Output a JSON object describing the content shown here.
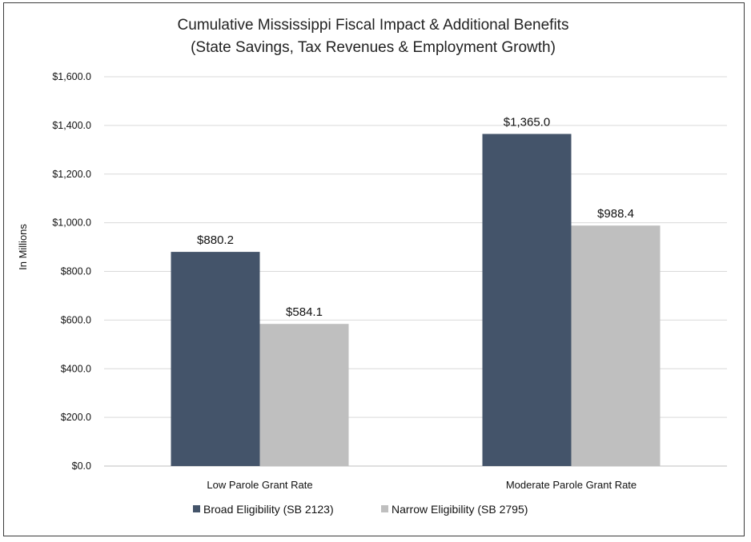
{
  "chart_data": {
    "type": "bar",
    "title": "Cumulative Mississippi Fiscal Impact & Additional Benefits",
    "subtitle": "(State Savings, Tax Revenues & Employment Growth)",
    "xlabel": "",
    "ylabel": "In Millions",
    "ylim": [
      0,
      1600
    ],
    "ytick_values": [
      0,
      200,
      400,
      600,
      800,
      1000,
      1200,
      1400,
      1600
    ],
    "ytick_labels": [
      "$0.0",
      "$200.0",
      "$400.0",
      "$600.0",
      "$800.0",
      "$1,000.0",
      "$1,200.0",
      "$1,400.0",
      "$1,600.0"
    ],
    "categories": [
      "Low Parole Grant Rate",
      "Moderate Parole Grant Rate"
    ],
    "series": [
      {
        "name": "Broad Eligibility (SB 2123)",
        "color": "#44546a",
        "values": [
          880.2,
          1365.0
        ],
        "labels": [
          "$880.2",
          "$1,365.0"
        ]
      },
      {
        "name": "Narrow Eligibility (SB 2795)",
        "color": "#bfbfbf",
        "values": [
          584.1,
          988.4
        ],
        "labels": [
          "$584.1",
          "$988.4"
        ]
      }
    ],
    "grid": true,
    "legend_position": "bottom"
  }
}
